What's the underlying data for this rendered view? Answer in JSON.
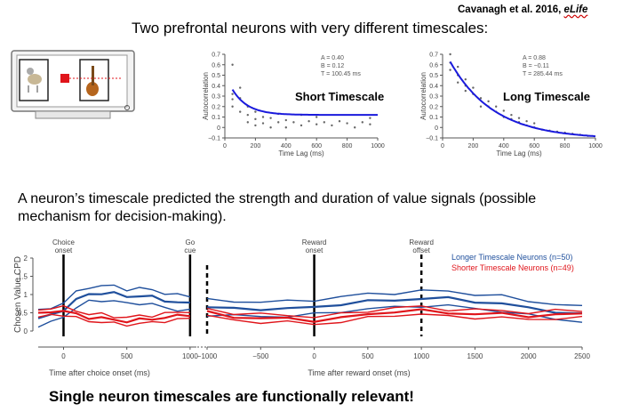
{
  "citation": {
    "authors": "Cavanagh et al. 2016, ",
    "journal": "eLife"
  },
  "title": "Two prefrontal neurons with very different timescales:",
  "claim": "A neuron’s timescale predicted the strength and duration of value signals (possible mechanism for decision-making).",
  "conclusion": "Single neuron timescales are functionally relevant!",
  "colors": {
    "fit": "#1a1adc",
    "longer": "#1f4f9c",
    "shorter": "#e0151b",
    "points": "#666666"
  },
  "icon": "monitor-choice-icon",
  "chart_data": [
    {
      "type": "scatter",
      "title": "Short Timescale",
      "ylabel": "Autocorrelation",
      "xlabel": "Time Lag (ms)",
      "xlim": [
        0,
        1000
      ],
      "ylim": [
        -0.1,
        0.7
      ],
      "xticks": [
        "0",
        "200",
        "400",
        "600",
        "800",
        "1000"
      ],
      "yticks": [
        "−0.1",
        "0",
        "0.1",
        "0.2",
        "0.3",
        "0.4",
        "0.5",
        "0.6",
        "0.7"
      ],
      "params": {
        "A": "A = 0.40",
        "B": "B = 0.12",
        "T": "T = 100.45 ms"
      },
      "fit": {
        "A": 0.4,
        "B": 0.12,
        "tau": 100.45
      },
      "points": [
        [
          50,
          0.32
        ],
        [
          50,
          0.6
        ],
        [
          50,
          0.2
        ],
        [
          50,
          0.27
        ],
        [
          100,
          0.28
        ],
        [
          100,
          0.15
        ],
        [
          100,
          0.38
        ],
        [
          150,
          0.12
        ],
        [
          150,
          0.2
        ],
        [
          150,
          0.05
        ],
        [
          200,
          0.08
        ],
        [
          200,
          0.15
        ],
        [
          200,
          0.02
        ],
        [
          250,
          0.1
        ],
        [
          250,
          0.04
        ],
        [
          300,
          0.09
        ],
        [
          300,
          0.0
        ],
        [
          350,
          0.05
        ],
        [
          350,
          0.13
        ],
        [
          400,
          0.07
        ],
        [
          400,
          0.0
        ],
        [
          450,
          0.05
        ],
        [
          500,
          0.12
        ],
        [
          500,
          0.02
        ],
        [
          550,
          0.06
        ],
        [
          600,
          0.03
        ],
        [
          600,
          0.1
        ],
        [
          650,
          0.05
        ],
        [
          700,
          0.02
        ],
        [
          750,
          0.06
        ],
        [
          800,
          0.04
        ],
        [
          850,
          0.0
        ],
        [
          900,
          0.05
        ],
        [
          950,
          0.03
        ],
        [
          950,
          0.09
        ]
      ]
    },
    {
      "type": "scatter",
      "title": "Long Timescale",
      "ylabel": "Autocorrelation",
      "xlabel": "Time Lag (ms)",
      "xlim": [
        0,
        1000
      ],
      "ylim": [
        -0.1,
        0.7
      ],
      "xticks": [
        "0",
        "200",
        "400",
        "600",
        "800",
        "1000"
      ],
      "yticks": [
        "−0.1",
        "0",
        "0.1",
        "0.2",
        "0.3",
        "0.4",
        "0.5",
        "0.6",
        "0.7"
      ],
      "params": {
        "A": "A = 0.88",
        "B": "B = −0.11",
        "T": "T = 285.44 ms"
      },
      "fit": {
        "A": 0.88,
        "B": -0.11,
        "tau": 285.44
      },
      "points": [
        [
          50,
          0.62
        ],
        [
          50,
          0.7
        ],
        [
          50,
          0.55
        ],
        [
          100,
          0.5
        ],
        [
          100,
          0.58
        ],
        [
          100,
          0.43
        ],
        [
          150,
          0.4
        ],
        [
          150,
          0.46
        ],
        [
          150,
          0.35
        ],
        [
          200,
          0.32
        ],
        [
          200,
          0.38
        ],
        [
          250,
          0.28
        ],
        [
          250,
          0.2
        ],
        [
          300,
          0.2
        ],
        [
          300,
          0.25
        ],
        [
          350,
          0.15
        ],
        [
          350,
          0.2
        ],
        [
          400,
          0.1
        ],
        [
          400,
          0.16
        ],
        [
          450,
          0.08
        ],
        [
          450,
          0.12
        ],
        [
          500,
          0.05
        ],
        [
          500,
          0.09
        ],
        [
          550,
          0.02
        ],
        [
          550,
          0.06
        ],
        [
          600,
          0.0
        ],
        [
          600,
          0.04
        ],
        [
          650,
          -0.02
        ],
        [
          700,
          -0.03
        ],
        [
          750,
          -0.04
        ],
        [
          800,
          -0.05
        ],
        [
          850,
          -0.06
        ],
        [
          900,
          -0.07
        ],
        [
          950,
          -0.08
        ]
      ]
    },
    {
      "type": "line",
      "ylabel": "Chosen Value CPD",
      "ylim": [
        0,
        2
      ],
      "yticks": [
        "0",
        "0.5",
        "1",
        "1.5",
        "2"
      ],
      "legend": [
        "Longer Timescale Neurons (n=50)",
        "Shorter Timescale Neurons (n=49)"
      ],
      "panels": [
        {
          "xlabel": "Time after choice onset (ms)",
          "xlim": [
            -200,
            1050
          ],
          "xticks": [
            "0",
            "500",
            "1000"
          ],
          "events": [
            {
              "x": 0,
              "label": [
                "Choice",
                "onset"
              ],
              "dashed": false
            },
            {
              "x": 1000,
              "label": [
                "Go",
                "cue"
              ],
              "dashed": false
            }
          ],
          "series": [
            {
              "name": "Longer Timescale Neurons (n=50)",
              "x": [
                -200,
                -100,
                0,
                100,
                200,
                300,
                400,
                500,
                600,
                700,
                800,
                900,
                1000
              ],
              "mean": [
                0.35,
                0.42,
                0.6,
                0.85,
                1.0,
                1.05,
                1.02,
                0.95,
                0.97,
                0.92,
                0.85,
                0.78,
                0.75
              ],
              "sem": 0.2
            },
            {
              "name": "Shorter Timescale Neurons (n=49)",
              "x": [
                -200,
                -100,
                0,
                100,
                200,
                300,
                400,
                500,
                600,
                700,
                800,
                900,
                1000
              ],
              "mean": [
                0.45,
                0.55,
                0.55,
                0.45,
                0.38,
                0.35,
                0.3,
                0.28,
                0.3,
                0.33,
                0.38,
                0.4,
                0.45
              ],
              "sem": 0.1
            }
          ]
        },
        {
          "xlabel": "Time after reward onset (ms)",
          "xlim": [
            -1000,
            2500
          ],
          "xticks": [
            "−1000",
            "−500",
            "0",
            "500",
            "1000",
            "1500",
            "2000",
            "2500"
          ],
          "events": [
            {
              "x": -1000,
              "label": [],
              "dashed": true
            },
            {
              "x": 0,
              "label": [
                "Reward",
                "onset"
              ],
              "dashed": false
            },
            {
              "x": 1000,
              "label": [
                "Reward",
                "offset"
              ],
              "dashed": true
            }
          ],
          "series": [
            {
              "name": "Longer Timescale Neurons (n=50)",
              "x": [
                -1000,
                -750,
                -500,
                -250,
                0,
                250,
                500,
                750,
                1000,
                1250,
                1500,
                1750,
                2000,
                2250,
                2500
              ],
              "mean": [
                0.65,
                0.6,
                0.62,
                0.6,
                0.65,
                0.75,
                0.8,
                0.85,
                0.9,
                0.88,
                0.82,
                0.75,
                0.62,
                0.55,
                0.45
              ],
              "sem": 0.2
            },
            {
              "name": "Shorter Timescale Neurons (n=49)",
              "x": [
                -1000,
                -750,
                -500,
                -250,
                0,
                250,
                500,
                750,
                1000,
                1250,
                1500,
                1750,
                2000,
                2250,
                2500
              ],
              "mean": [
                0.5,
                0.4,
                0.35,
                0.33,
                0.3,
                0.35,
                0.45,
                0.55,
                0.55,
                0.5,
                0.48,
                0.45,
                0.42,
                0.45,
                0.45
              ],
              "sem": 0.1
            }
          ]
        }
      ]
    }
  ]
}
